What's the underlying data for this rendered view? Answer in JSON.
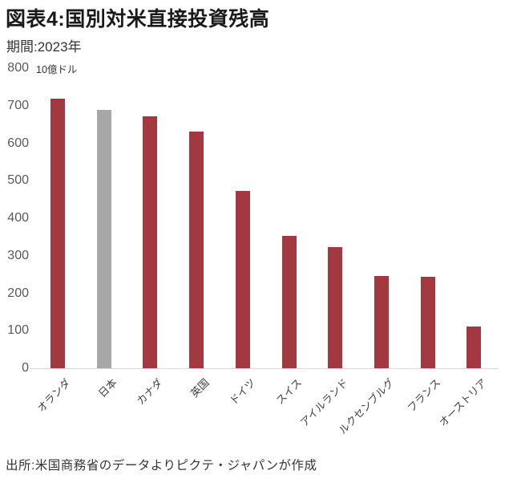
{
  "title": "図表4:国別対米直接投資残高",
  "subtitle": "期間:2023年",
  "unit_label": "10億ドル",
  "source": "出所:米国商務省のデータよりピクテ・ジャパンが作成",
  "colors": {
    "bar_default": "#a23940",
    "bar_highlight": "#a7a7a7",
    "axis_line": "#d9d9d9",
    "ytick_text": "#595959",
    "xtick_text": "#404040",
    "title_text": "#1a1a1a",
    "body_text": "#333333"
  },
  "chart_data": {
    "type": "bar",
    "title": "図表4:国別対米直接投資残高",
    "subtitle": "期間:2023年",
    "xlabel": "",
    "ylabel": "10億ドル",
    "ylim": [
      0,
      800
    ],
    "yticks": [
      0,
      100,
      200,
      300,
      400,
      500,
      600,
      700,
      800
    ],
    "grid": false,
    "legend": "none",
    "categories": [
      "オランダ",
      "日本",
      "カナダ",
      "英国",
      "ドイツ",
      "スイス",
      "アイルランド",
      "ルクセンブルグ",
      "フランス",
      "オーストリア"
    ],
    "values": [
      718,
      689,
      672,
      630,
      472,
      353,
      324,
      247,
      244,
      112
    ],
    "highlight_category": "日本",
    "highlight_reason": "Japan bar shown in gray, all others dark red"
  }
}
